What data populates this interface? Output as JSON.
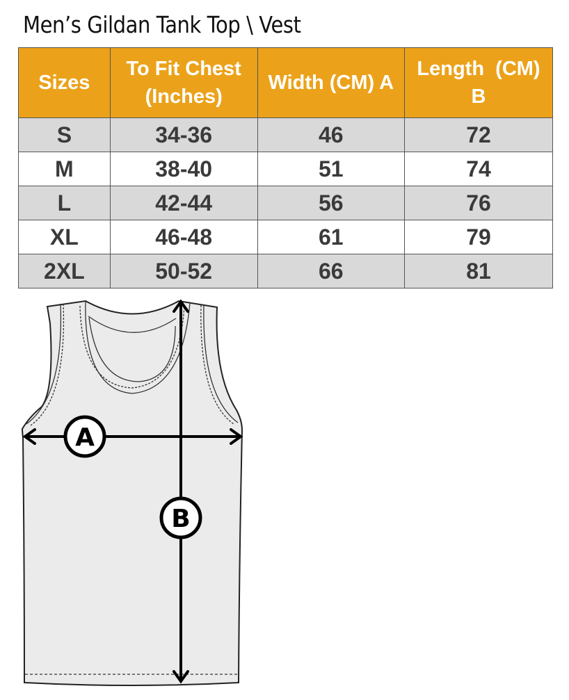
{
  "title": "Men’s Gildan Tank Top \\ Vest",
  "table": {
    "headers": [
      "Sizes",
      "To Fit Chest (Inches)",
      "Width (CM) A",
      "Length  (CM) B"
    ],
    "rows": [
      [
        "S",
        "34-36",
        "46",
        "72"
      ],
      [
        "M",
        "38-40",
        "51",
        "74"
      ],
      [
        "L",
        "42-44",
        "56",
        "76"
      ],
      [
        "XL",
        "46-48",
        "61",
        "79"
      ],
      [
        "2XL",
        "50-52",
        "66",
        "81"
      ]
    ],
    "header_color": "#eba21a",
    "stripe_color": "#d9d9d9"
  },
  "diagram": {
    "label_a": "A",
    "label_b": "B"
  }
}
